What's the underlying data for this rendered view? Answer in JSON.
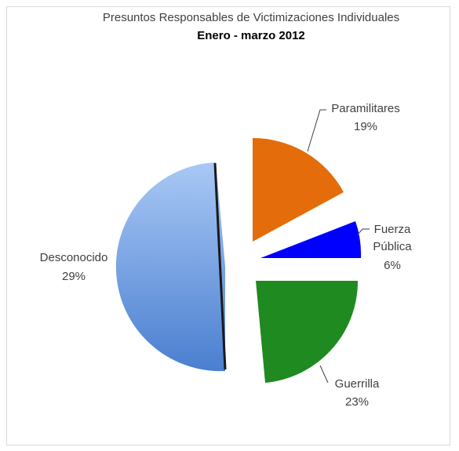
{
  "chart_data": {
    "type": "pie",
    "title": "Presuntos Responsables de Victimizaciones Individuales",
    "subtitle": "Enero - marzo 2012",
    "slices": [
      {
        "label_line1": "Paramilitares",
        "label_line2": "",
        "percent_label": "19%",
        "value": 19,
        "color": "#e46c0a"
      },
      {
        "label_line1": "Fuerza",
        "label_line2": "Pública",
        "percent_label": "6%",
        "value": 6,
        "color": "#0000ff"
      },
      {
        "label_line1": "Guerrilla",
        "label_line2": "",
        "percent_label": "23%",
        "value": 23,
        "color": "#1f8a1f"
      },
      {
        "label_line1": "Desconocido",
        "label_line2": "",
        "percent_label": "29%",
        "value": 29,
        "color": "#5b8fd8"
      }
    ]
  }
}
